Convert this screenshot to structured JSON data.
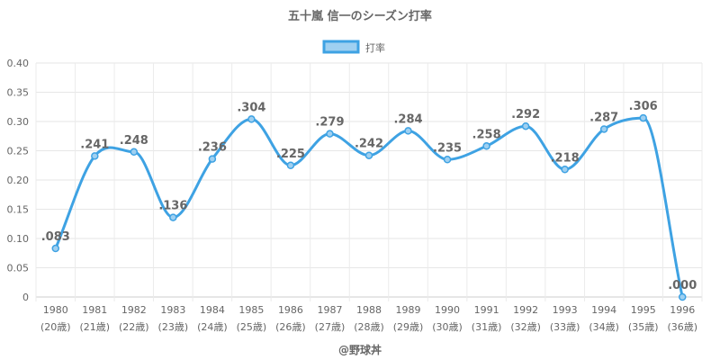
{
  "chart_data": {
    "type": "line",
    "title": "五十嵐 信一のシーズン打率",
    "legend": {
      "label": "打率",
      "position": "top-center"
    },
    "series": [
      {
        "name": "打率",
        "color": "#3ea2e3",
        "fill_color": "#9fd0f1",
        "values": [
          0.083,
          0.241,
          0.248,
          0.136,
          0.236,
          0.304,
          0.225,
          0.279,
          0.242,
          0.284,
          0.235,
          0.258,
          0.292,
          0.218,
          0.287,
          0.306,
          0.0
        ]
      }
    ],
    "categories": [
      "1980",
      "1981",
      "1982",
      "1983",
      "1984",
      "1985",
      "1986",
      "1987",
      "1988",
      "1989",
      "1990",
      "1991",
      "1992",
      "1993",
      "1994",
      "1995",
      "1996"
    ],
    "category_sublabels": [
      "(20歳)",
      "(21歳)",
      "(22歳)",
      "(23歳)",
      "(24歳)",
      "(25歳)",
      "(26歳)",
      "(27歳)",
      "(28歳)",
      "(29歳)",
      "(30歳)",
      "(31歳)",
      "(32歳)",
      "(33歳)",
      "(34歳)",
      "(35歳)",
      "(36歳)"
    ],
    "data_labels": [
      ".083",
      ".241",
      ".248",
      ".136",
      ".236",
      ".304",
      ".225",
      ".279",
      ".242",
      ".284",
      ".235",
      ".258",
      ".292",
      ".218",
      ".287",
      ".306",
      ".000"
    ],
    "y_ticks": [
      "0",
      "0.05",
      "0.10",
      "0.15",
      "0.20",
      "0.25",
      "0.30",
      "0.35",
      "0.40"
    ],
    "ylim": [
      0,
      0.4
    ],
    "grid": true,
    "credit": "@野球丼"
  }
}
